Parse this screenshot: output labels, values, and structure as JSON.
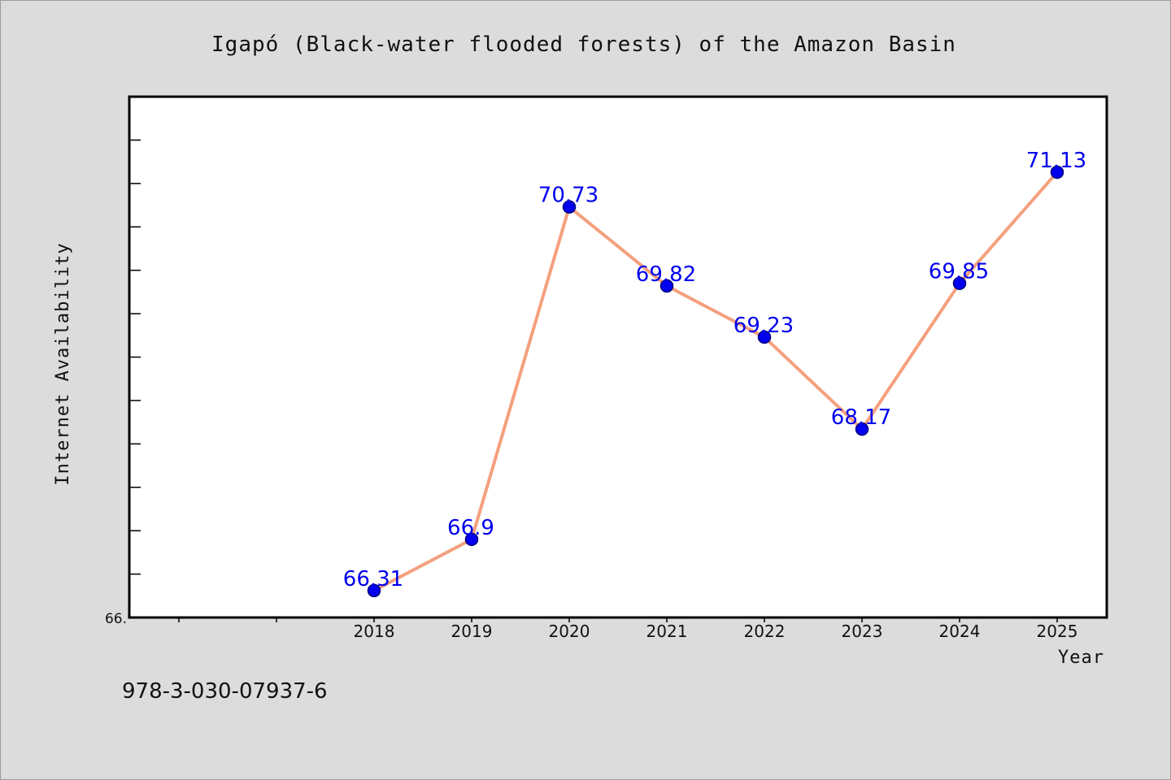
{
  "chart_data": {
    "type": "line",
    "title": "Igapó (Black-water flooded forests) of the Amazon Basin",
    "xlabel": "Year",
    "ylabel": "Internet Availability",
    "categories": [
      "2018",
      "2019",
      "2020",
      "2021",
      "2022",
      "2023",
      "2024",
      "2025"
    ],
    "values": [
      66.31,
      66.9,
      70.73,
      69.82,
      69.23,
      68.17,
      69.85,
      71.13
    ],
    "data_labels": [
      "66.31",
      "66.9",
      "70.73",
      "69.82",
      "69.23",
      "68.17",
      "69.85",
      "71.13"
    ],
    "ylim": [
      66.0,
      72.0
    ],
    "y_tick_label": "66.",
    "grid": false,
    "colors": {
      "line": "#f4a07e",
      "marker": "#0000ee",
      "label": "#0000ee"
    }
  },
  "footer": {
    "isbn": "978-3-030-07937-6"
  }
}
